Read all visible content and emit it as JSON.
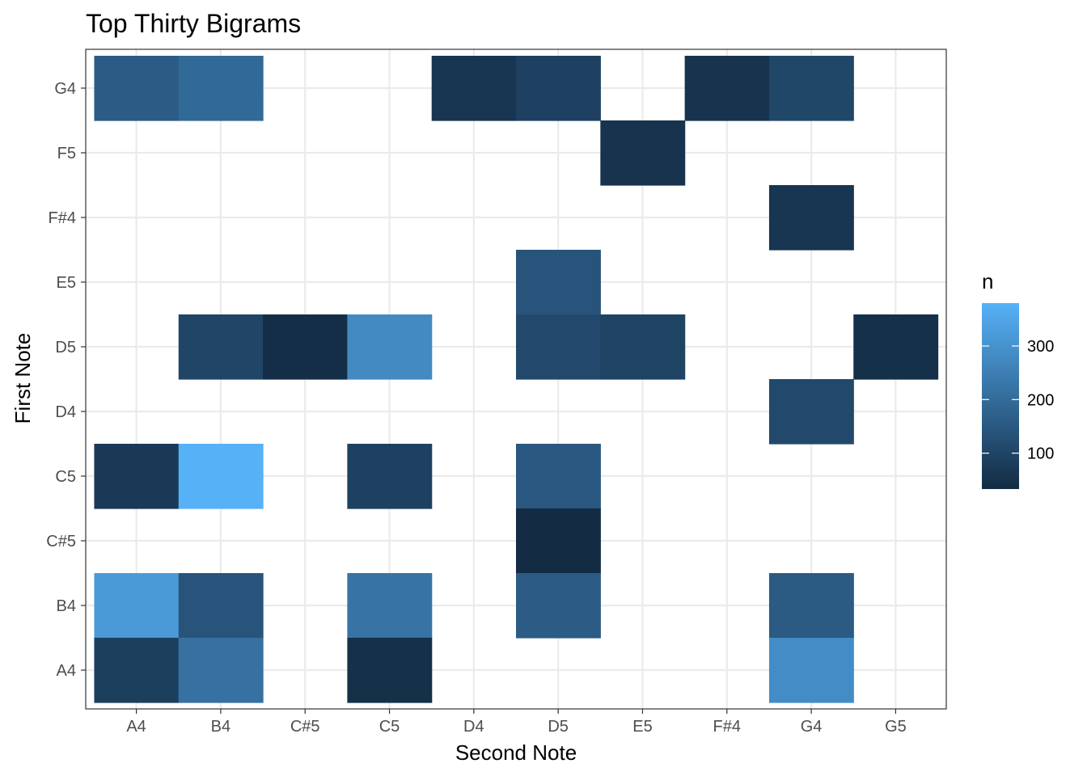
{
  "chart_data": {
    "type": "heatmap",
    "title": "Top Thirty Bigrams",
    "xlabel": "Second Note",
    "ylabel": "First Note",
    "x_categories": [
      "A4",
      "B4",
      "C#5",
      "C5",
      "D4",
      "D5",
      "E5",
      "F#4",
      "G4",
      "G5"
    ],
    "y_categories": [
      "A4",
      "B4",
      "C#5",
      "C5",
      "D4",
      "D5",
      "E5",
      "F#4",
      "F5",
      "G4"
    ],
    "cells": [
      {
        "first": "G4",
        "second": "A4",
        "n": 160
      },
      {
        "first": "G4",
        "second": "B4",
        "n": 195
      },
      {
        "first": "G4",
        "second": "D4",
        "n": 60
      },
      {
        "first": "G4",
        "second": "D5",
        "n": 90
      },
      {
        "first": "G4",
        "second": "F#4",
        "n": 55
      },
      {
        "first": "G4",
        "second": "G4",
        "n": 105
      },
      {
        "first": "F5",
        "second": "E5",
        "n": 55
      },
      {
        "first": "F#4",
        "second": "G4",
        "n": 60
      },
      {
        "first": "E5",
        "second": "D5",
        "n": 140
      },
      {
        "first": "D5",
        "second": "B4",
        "n": 100
      },
      {
        "first": "D5",
        "second": "C#5",
        "n": 40
      },
      {
        "first": "D5",
        "second": "C5",
        "n": 280
      },
      {
        "first": "D5",
        "second": "D5",
        "n": 110
      },
      {
        "first": "D5",
        "second": "E5",
        "n": 95
      },
      {
        "first": "D5",
        "second": "G5",
        "n": 45
      },
      {
        "first": "D4",
        "second": "G4",
        "n": 110
      },
      {
        "first": "C5",
        "second": "A4",
        "n": 70
      },
      {
        "first": "C5",
        "second": "B4",
        "n": 380
      },
      {
        "first": "C5",
        "second": "C5",
        "n": 90
      },
      {
        "first": "C5",
        "second": "D5",
        "n": 150
      },
      {
        "first": "C#5",
        "second": "D5",
        "n": 35
      },
      {
        "first": "B4",
        "second": "A4",
        "n": 320
      },
      {
        "first": "B4",
        "second": "B4",
        "n": 140
      },
      {
        "first": "B4",
        "second": "C5",
        "n": 220
      },
      {
        "first": "B4",
        "second": "D5",
        "n": 160
      },
      {
        "first": "B4",
        "second": "G4",
        "n": 155
      },
      {
        "first": "A4",
        "second": "A4",
        "n": 85
      },
      {
        "first": "A4",
        "second": "B4",
        "n": 215
      },
      {
        "first": "A4",
        "second": "C5",
        "n": 45
      },
      {
        "first": "A4",
        "second": "G4",
        "n": 285
      }
    ],
    "legend": {
      "title": "n",
      "position": "right",
      "range": [
        33,
        380
      ],
      "ticks": [
        100,
        200,
        300
      ],
      "color_low": "#132B43",
      "color_high": "#56B1F7"
    },
    "grid": true
  }
}
